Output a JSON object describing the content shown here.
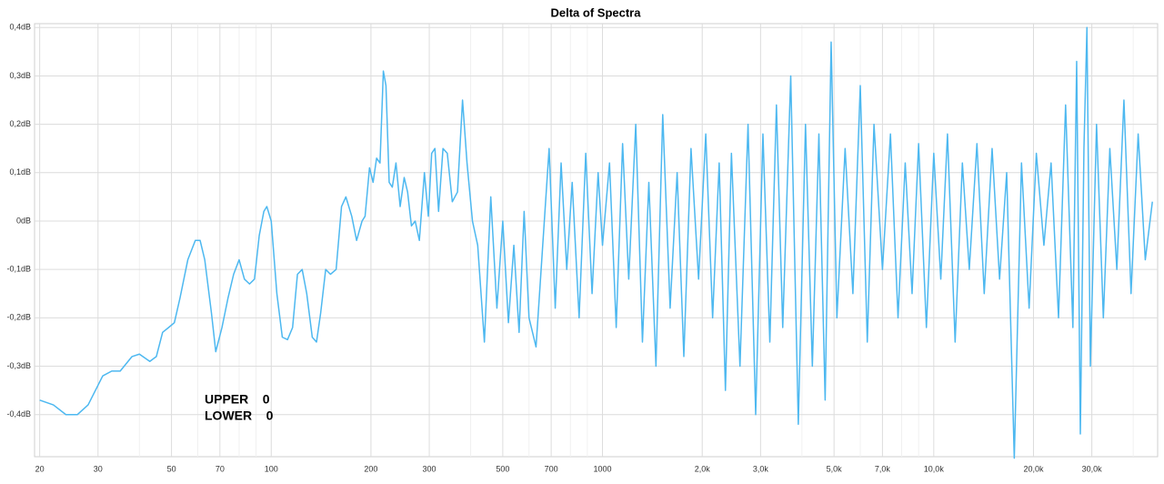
{
  "chart_data": {
    "type": "line",
    "title": "Delta of Spectra",
    "annotations": [
      "UPPER    0",
      "LOWER    0"
    ],
    "log_x": true,
    "grid": true,
    "color": "#4db8f0",
    "xlim": [
      19.3,
      47400
    ],
    "ylim": [
      -0.487,
      0.408
    ],
    "xticks": [
      20,
      30,
      50,
      70,
      100,
      200,
      300,
      500,
      700,
      1000,
      {
        "value": 2000,
        "label": "2,0k"
      },
      {
        "value": 3000,
        "label": "3,0k"
      },
      {
        "value": 5000,
        "label": "5,0k"
      },
      {
        "value": 7000,
        "label": "7,0k"
      },
      {
        "value": 10000,
        "label": "10,0k"
      },
      {
        "value": 20000,
        "label": "20,0k"
      },
      {
        "value": 30000,
        "label": "30,0k"
      }
    ],
    "x_minor_ticks": [
      40,
      60,
      80,
      90,
      400,
      600,
      800,
      900,
      4000,
      6000,
      8000,
      9000,
      40000
    ],
    "yticks": [
      {
        "value": 0.4,
        "label": "0,4dB"
      },
      {
        "value": 0.3,
        "label": "0,3dB"
      },
      {
        "value": 0.2,
        "label": "0,2dB"
      },
      {
        "value": 0.1,
        "label": "0,1dB"
      },
      {
        "value": 0,
        "label": "0dB"
      },
      {
        "value": -0.1,
        "label": "-0,1dB"
      },
      {
        "value": -0.2,
        "label": "-0,2dB"
      },
      {
        "value": -0.3,
        "label": "-0,3dB"
      },
      {
        "value": -0.4,
        "label": "-0,4dB"
      }
    ],
    "x": [
      20,
      22,
      24,
      26,
      28,
      31,
      33,
      35,
      38,
      40,
      43,
      45,
      47,
      49,
      51,
      53,
      56,
      59,
      61,
      63,
      66,
      68,
      71,
      74,
      77,
      80,
      83,
      86,
      89,
      92,
      95,
      97,
      100,
      104,
      108,
      112,
      116,
      120,
      124,
      128,
      133,
      137,
      141,
      146,
      151,
      157,
      163,
      168,
      175,
      181,
      188,
      192,
      198,
      203,
      208,
      213,
      218,
      222,
      227,
      232,
      238,
      245,
      252,
      258,
      265,
      272,
      280,
      290,
      298,
      305,
      312,
      320,
      330,
      340,
      352,
      365,
      378,
      390,
      405,
      420,
      440,
      460,
      480,
      500,
      520,
      540,
      560,
      580,
      600,
      630,
      660,
      690,
      720,
      750,
      780,
      810,
      850,
      890,
      930,
      970,
      1000,
      1050,
      1100,
      1150,
      1200,
      1260,
      1320,
      1380,
      1450,
      1520,
      1600,
      1680,
      1760,
      1850,
      1950,
      2050,
      2150,
      2250,
      2350,
      2450,
      2600,
      2750,
      2900,
      3050,
      3200,
      3350,
      3500,
      3700,
      3900,
      4100,
      4300,
      4500,
      4700,
      4900,
      5100,
      5400,
      5700,
      6000,
      6300,
      6600,
      7000,
      7400,
      7800,
      8200,
      8600,
      9000,
      9500,
      10000,
      10500,
      11000,
      11600,
      12200,
      12800,
      13500,
      14200,
      15000,
      15800,
      16600,
      17500,
      18400,
      19400,
      20400,
      21500,
      22600,
      23800,
      25000,
      26300,
      27000,
      27700,
      28400,
      29000,
      29700,
      31000,
      32500,
      34000,
      35700,
      37500,
      39400,
      41400,
      43500,
      45700
    ],
    "values": [
      -0.37,
      -0.38,
      -0.4,
      -0.4,
      -0.38,
      -0.32,
      -0.31,
      -0.31,
      -0.28,
      -0.275,
      -0.29,
      -0.28,
      -0.23,
      -0.22,
      -0.21,
      -0.16,
      -0.08,
      -0.04,
      -0.04,
      -0.08,
      -0.19,
      -0.27,
      -0.22,
      -0.16,
      -0.11,
      -0.08,
      -0.12,
      -0.13,
      -0.12,
      -0.03,
      0.02,
      0.03,
      0.0,
      -0.15,
      -0.24,
      -0.245,
      -0.22,
      -0.11,
      -0.1,
      -0.15,
      -0.24,
      -0.25,
      -0.19,
      -0.1,
      -0.11,
      -0.1,
      0.03,
      0.05,
      0.01,
      -0.04,
      0.0,
      0.01,
      0.11,
      0.08,
      0.13,
      0.12,
      0.31,
      0.28,
      0.08,
      0.07,
      0.12,
      0.03,
      0.09,
      0.06,
      -0.01,
      0.0,
      -0.04,
      0.1,
      0.01,
      0.14,
      0.15,
      0.02,
      0.15,
      0.14,
      0.04,
      0.06,
      0.25,
      0.12,
      0.0,
      -0.05,
      -0.25,
      0.05,
      -0.18,
      0.0,
      -0.21,
      -0.05,
      -0.23,
      0.02,
      -0.2,
      -0.26,
      -0.05,
      0.15,
      -0.18,
      0.12,
      -0.1,
      0.08,
      -0.2,
      0.14,
      -0.15,
      0.1,
      -0.05,
      0.12,
      -0.22,
      0.16,
      -0.12,
      0.2,
      -0.25,
      0.08,
      -0.3,
      0.22,
      -0.18,
      0.1,
      -0.28,
      0.15,
      -0.12,
      0.18,
      -0.2,
      0.12,
      -0.35,
      0.14,
      -0.3,
      0.2,
      -0.4,
      0.18,
      -0.25,
      0.24,
      -0.22,
      0.3,
      -0.42,
      0.2,
      -0.3,
      0.18,
      -0.37,
      0.37,
      -0.2,
      0.15,
      -0.15,
      0.28,
      -0.25,
      0.2,
      -0.1,
      0.18,
      -0.2,
      0.12,
      -0.15,
      0.16,
      -0.22,
      0.14,
      -0.12,
      0.18,
      -0.25,
      0.12,
      -0.1,
      0.16,
      -0.15,
      0.15,
      -0.12,
      0.1,
      -0.49,
      0.12,
      -0.18,
      0.14,
      -0.05,
      0.12,
      -0.2,
      0.24,
      -0.22,
      0.33,
      -0.44,
      0.15,
      0.4,
      -0.3,
      0.2,
      -0.2,
      0.15,
      -0.1,
      0.25,
      -0.15,
      0.18,
      -0.08,
      0.04
    ]
  }
}
